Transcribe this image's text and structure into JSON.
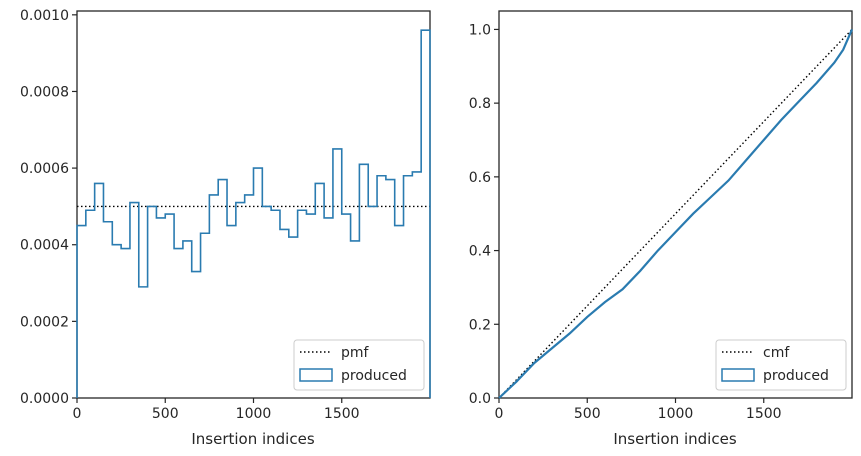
{
  "chart_data": [
    {
      "type": "step",
      "xlabel": "Insertion indices",
      "ylabel": "",
      "xlim": [
        0,
        2000
      ],
      "ylim": [
        0,
        0.00101
      ],
      "xticks": [
        0,
        500,
        1000,
        1500
      ],
      "xtick_labels": [
        "0",
        "500",
        "1000",
        "1500"
      ],
      "yticks": [
        0,
        0.0002,
        0.0004,
        0.0006,
        0.0008,
        0.001
      ],
      "ytick_labels": [
        "0.0000",
        "0.0002",
        "0.0004",
        "0.0006",
        "0.0008",
        "0.0010"
      ],
      "legend_position": "lower-right",
      "series": [
        {
          "name": "pmf",
          "style": "dotted",
          "color": "#000000",
          "x": [
            0,
            2000
          ],
          "y": [
            0.0005,
            0.0005
          ]
        },
        {
          "name": "produced",
          "style": "histogram-step",
          "color": "#2a7bb0",
          "bin_edges": [
            0,
            50,
            100,
            150,
            200,
            250,
            300,
            350,
            400,
            450,
            500,
            550,
            600,
            650,
            700,
            750,
            800,
            850,
            900,
            950,
            1000,
            1050,
            1100,
            1150,
            1200,
            1250,
            1300,
            1350,
            1400,
            1450,
            1500,
            1550,
            1600,
            1650,
            1700,
            1750,
            1800,
            1850,
            1900,
            1950,
            2000
          ],
          "values": [
            0.00045,
            0.00049,
            0.00056,
            0.00046,
            0.0004,
            0.00039,
            0.00051,
            0.00029,
            0.0005,
            0.00047,
            0.00048,
            0.00039,
            0.00041,
            0.00033,
            0.00043,
            0.00053,
            0.00057,
            0.00045,
            0.00051,
            0.00053,
            0.0006,
            0.0005,
            0.00049,
            0.00044,
            0.00042,
            0.00049,
            0.00048,
            0.00056,
            0.00047,
            0.00065,
            0.00048,
            0.00041,
            0.00061,
            0.0005,
            0.00058,
            0.00057,
            0.00045,
            0.00058,
            0.00059,
            0.00096
          ]
        }
      ]
    },
    {
      "type": "line",
      "xlabel": "Insertion indices",
      "ylabel": "",
      "xlim": [
        0,
        2000
      ],
      "ylim": [
        0,
        1.05
      ],
      "xticks": [
        0,
        500,
        1000,
        1500
      ],
      "xtick_labels": [
        "0",
        "500",
        "1000",
        "1500"
      ],
      "yticks": [
        0,
        0.2,
        0.4,
        0.6,
        0.8,
        1.0
      ],
      "ytick_labels": [
        "0.0",
        "0.2",
        "0.4",
        "0.6",
        "0.8",
        "1.0"
      ],
      "legend_position": "lower-right",
      "series": [
        {
          "name": "cmf",
          "style": "dotted",
          "color": "#000000",
          "x": [
            0,
            2000
          ],
          "y": [
            0,
            1.0
          ]
        },
        {
          "name": "produced",
          "style": "solid",
          "color": "#2a7bb0",
          "x": [
            0,
            100,
            200,
            300,
            400,
            500,
            600,
            700,
            800,
            900,
            1000,
            1100,
            1200,
            1300,
            1400,
            1500,
            1600,
            1700,
            1800,
            1900,
            1950,
            2000
          ],
          "y": [
            0,
            0.045,
            0.095,
            0.135,
            0.175,
            0.22,
            0.26,
            0.295,
            0.345,
            0.4,
            0.45,
            0.5,
            0.545,
            0.59,
            0.645,
            0.7,
            0.755,
            0.805,
            0.855,
            0.91,
            0.945,
            1.0
          ]
        }
      ]
    }
  ]
}
